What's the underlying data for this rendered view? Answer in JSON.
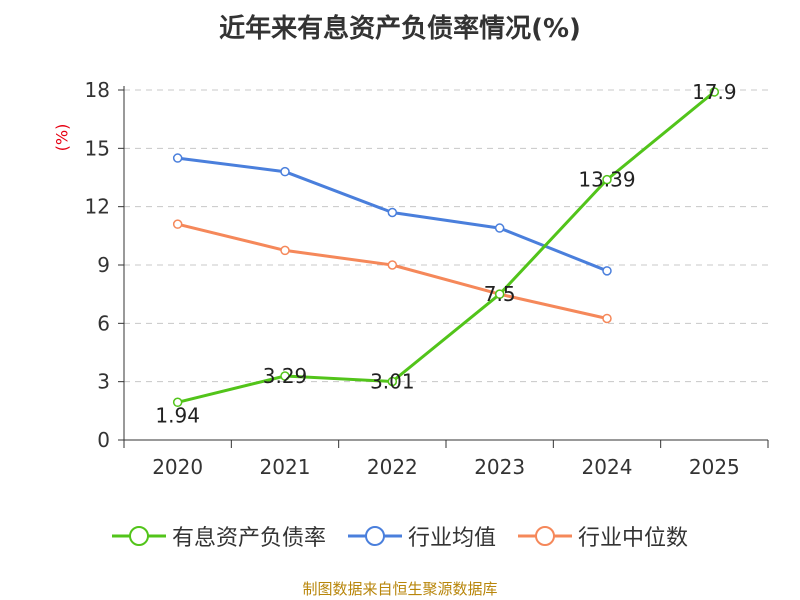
{
  "title": "近年来有息资产负债率情况(%)",
  "unit_label": "(%)",
  "source": "制图数据来自恒生聚源数据库",
  "chart_data": {
    "type": "line",
    "categories": [
      "2020",
      "2021",
      "2022",
      "2023",
      "2024",
      "2025"
    ],
    "ylim": [
      0,
      18
    ],
    "yticks": [
      0,
      3,
      6,
      9,
      12,
      15,
      18
    ],
    "grid": true,
    "legend_position": "bottom",
    "series": [
      {
        "name": "有息资产负债率",
        "color": "#52c41a",
        "values": [
          1.94,
          3.29,
          3.01,
          7.5,
          13.39,
          17.9
        ],
        "show_labels": true,
        "labels": [
          "1.94",
          "3.29",
          "3.01",
          "7.5",
          "13.39",
          "17.9"
        ]
      },
      {
        "name": "行业均值",
        "color": "#4a7fdc",
        "values": [
          14.5,
          13.8,
          11.7,
          10.9,
          8.7,
          null
        ],
        "show_labels": false
      },
      {
        "name": "行业中位数",
        "color": "#f5885a",
        "values": [
          11.1,
          9.75,
          9.0,
          7.5,
          6.25,
          null
        ],
        "show_labels": false
      }
    ]
  }
}
